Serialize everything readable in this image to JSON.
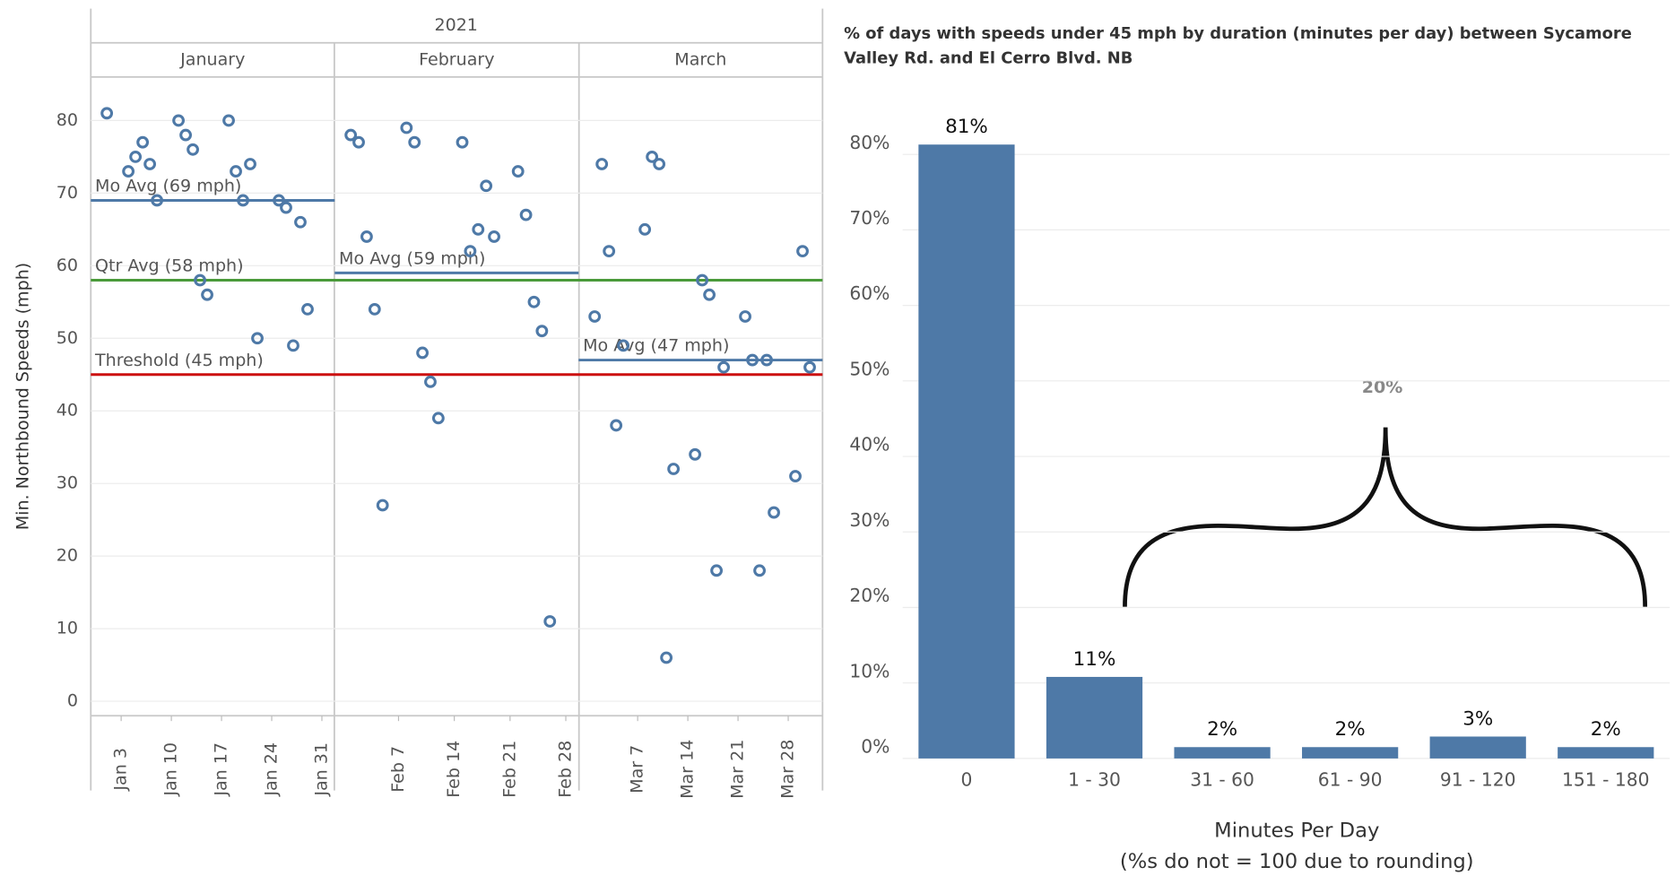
{
  "chart_data": [
    {
      "type": "scatter",
      "title": "2021",
      "y_label": "Min. Northbound Speeds (mph)",
      "color": "#4e79a7",
      "panels": [
        {
          "label": "January",
          "xlim": [
            "2021-01-01",
            "2021-01-31"
          ],
          "avg": {
            "label": "Mo Avg (69 mph)",
            "value": 69,
            "color": "#4e79a7"
          }
        },
        {
          "label": "February",
          "xlim": [
            "2021-02-01",
            "2021-02-28"
          ],
          "avg": {
            "label": "Mo Avg (59 mph)",
            "value": 59,
            "color": "#4e79a7"
          }
        },
        {
          "label": "March",
          "xlim": [
            "2021-03-01",
            "2021-03-31"
          ],
          "avg": {
            "label": "Mo Avg (47 mph)",
            "value": 47,
            "color": "#4e79a7"
          }
        }
      ],
      "reference_lines": [
        {
          "label": "Qtr Avg (58 mph)",
          "value": 58,
          "color": "#4a9a3a"
        },
        {
          "label": "Threshold (45 mph)",
          "value": 45,
          "color": "#cc1111"
        }
      ],
      "x": [
        "2021-01-01",
        "2021-01-04",
        "2021-01-05",
        "2021-01-06",
        "2021-01-07",
        "2021-01-08",
        "2021-01-11",
        "2021-01-12",
        "2021-01-13",
        "2021-01-14",
        "2021-01-15",
        "2021-01-18",
        "2021-01-19",
        "2021-01-20",
        "2021-01-21",
        "2021-01-22",
        "2021-01-25",
        "2021-01-26",
        "2021-01-27",
        "2021-01-28",
        "2021-01-29",
        "2021-02-01",
        "2021-02-02",
        "2021-02-03",
        "2021-02-04",
        "2021-02-05",
        "2021-02-08",
        "2021-02-09",
        "2021-02-10",
        "2021-02-11",
        "2021-02-12",
        "2021-02-15",
        "2021-02-16",
        "2021-02-17",
        "2021-02-18",
        "2021-02-19",
        "2021-02-22",
        "2021-02-23",
        "2021-02-24",
        "2021-02-25",
        "2021-02-26",
        "2021-03-01",
        "2021-03-02",
        "2021-03-03",
        "2021-03-04",
        "2021-03-05",
        "2021-03-08",
        "2021-03-09",
        "2021-03-10",
        "2021-03-11",
        "2021-03-12",
        "2021-03-15",
        "2021-03-16",
        "2021-03-17",
        "2021-03-18",
        "2021-03-19",
        "2021-03-22",
        "2021-03-23",
        "2021-03-24",
        "2021-03-25",
        "2021-03-26",
        "2021-03-29",
        "2021-03-30",
        "2021-03-31"
      ],
      "values": [
        81,
        73,
        75,
        77,
        74,
        69,
        80,
        78,
        76,
        58,
        56,
        80,
        73,
        69,
        74,
        50,
        69,
        68,
        49,
        66,
        54,
        78,
        77,
        64,
        54,
        27,
        79,
        77,
        48,
        44,
        39,
        77,
        62,
        65,
        71,
        64,
        73,
        67,
        55,
        51,
        11,
        53,
        74,
        62,
        38,
        49,
        65,
        75,
        74,
        6,
        32,
        34,
        58,
        56,
        18,
        46,
        53,
        47,
        18,
        47,
        26,
        31,
        62,
        46
      ],
      "xticks": [
        {
          "value": "2021-01-03",
          "label": "Jan 3"
        },
        {
          "value": "2021-01-10",
          "label": "Jan 10"
        },
        {
          "value": "2021-01-17",
          "label": "Jan 17"
        },
        {
          "value": "2021-01-24",
          "label": "Jan 24"
        },
        {
          "value": "2021-01-31",
          "label": "Jan 31"
        },
        {
          "value": "2021-02-07",
          "label": "Feb 7"
        },
        {
          "value": "2021-02-14",
          "label": "Feb 14"
        },
        {
          "value": "2021-02-21",
          "label": "Feb 21"
        },
        {
          "value": "2021-02-28",
          "label": "Feb 28"
        },
        {
          "value": "2021-03-07",
          "label": "Mar 7"
        },
        {
          "value": "2021-03-14",
          "label": "Mar 14"
        },
        {
          "value": "2021-03-21",
          "label": "Mar 21"
        },
        {
          "value": "2021-03-28",
          "label": "Mar 28"
        }
      ],
      "ylim": [
        -2,
        86
      ],
      "yticks": [
        0,
        10,
        20,
        30,
        40,
        50,
        60,
        70,
        80
      ],
      "grid": true
    },
    {
      "type": "bar",
      "title": "% of days with speeds under 45 mph by duration (minutes per day) between Sycamore Valley Rd. and El Cerro Blvd. NB",
      "x_label": "Minutes Per Day",
      "x_label_note": "(%s do not = 100 due to rounding)",
      "categories": [
        "0",
        "1 - 30",
        "31 - 60",
        "61 - 90",
        "91 - 120",
        "151 - 180"
      ],
      "values": [
        81.3,
        10.8,
        1.5,
        1.5,
        2.9,
        1.5
      ],
      "value_labels": [
        "81%",
        "11%",
        "2%",
        "2%",
        "3%",
        "2%"
      ],
      "color": "#4e79a7",
      "annotation": "20%",
      "ylim": [
        0,
        87
      ],
      "yticks": [
        {
          "value": 0,
          "label": "0%"
        },
        {
          "value": 10,
          "label": "10%"
        },
        {
          "value": 20,
          "label": "20%"
        },
        {
          "value": 30,
          "label": "30%"
        },
        {
          "value": 40,
          "label": "40%"
        },
        {
          "value": 50,
          "label": "50%"
        },
        {
          "value": 60,
          "label": "60%"
        },
        {
          "value": 70,
          "label": "70%"
        },
        {
          "value": 80,
          "label": "80%"
        }
      ],
      "grid": true
    }
  ]
}
